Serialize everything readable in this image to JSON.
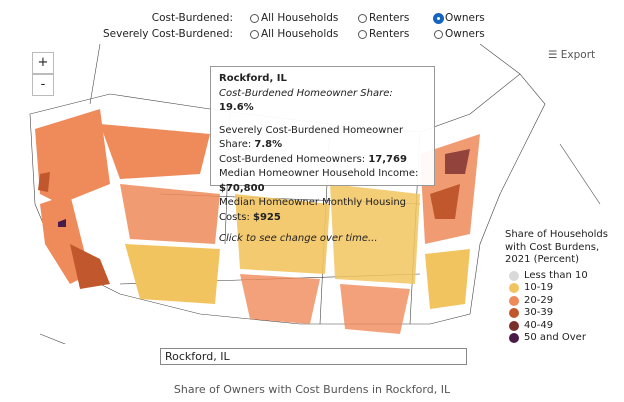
{
  "controls": {
    "rows": [
      {
        "label": "Cost-Burdened:",
        "options": [
          "All Households",
          "Renters",
          "Owners"
        ],
        "selected": 2
      },
      {
        "label": "Severely Cost-Burdened:",
        "options": [
          "All Households",
          "Renters",
          "Owners"
        ],
        "selected": null
      }
    ]
  },
  "zoom": {
    "in": "+",
    "out": "-"
  },
  "export": "Export",
  "tooltip": {
    "title": "Rockford, IL",
    "subtitle": {
      "label": "Cost-Burdened Homeowner Share:",
      "value": "19.6%"
    },
    "rows": [
      {
        "label": "Severely Cost-Burdened Homeowner Share:",
        "value": "7.8%"
      },
      {
        "label": "Cost-Burdened Homeowners:",
        "value": "17,769"
      },
      {
        "label": "Median Homeowner Household Income:",
        "value": "$70,800"
      },
      {
        "label": "Median Homeowner Monthly Housing Costs:",
        "value": "$925"
      }
    ],
    "footer": "Click to see change over time..."
  },
  "legend": {
    "title_lines": [
      "Share of Households",
      "with Cost Burdens,",
      "2021 (Percent)"
    ],
    "items": [
      {
        "label": "Less than 10",
        "color": "#d9d9d9"
      },
      {
        "label": "10-19",
        "color": "#f2c45f"
      },
      {
        "label": "20-29",
        "color": "#ef8a5a"
      },
      {
        "label": "30-39",
        "color": "#c1572d"
      },
      {
        "label": "40-49",
        "color": "#7a2e2e"
      },
      {
        "label": "50 and Over",
        "color": "#4a1a4a"
      }
    ]
  },
  "search": "Rockford, IL",
  "caption": "Share of Owners with Cost Burdens in Rockford, IL"
}
